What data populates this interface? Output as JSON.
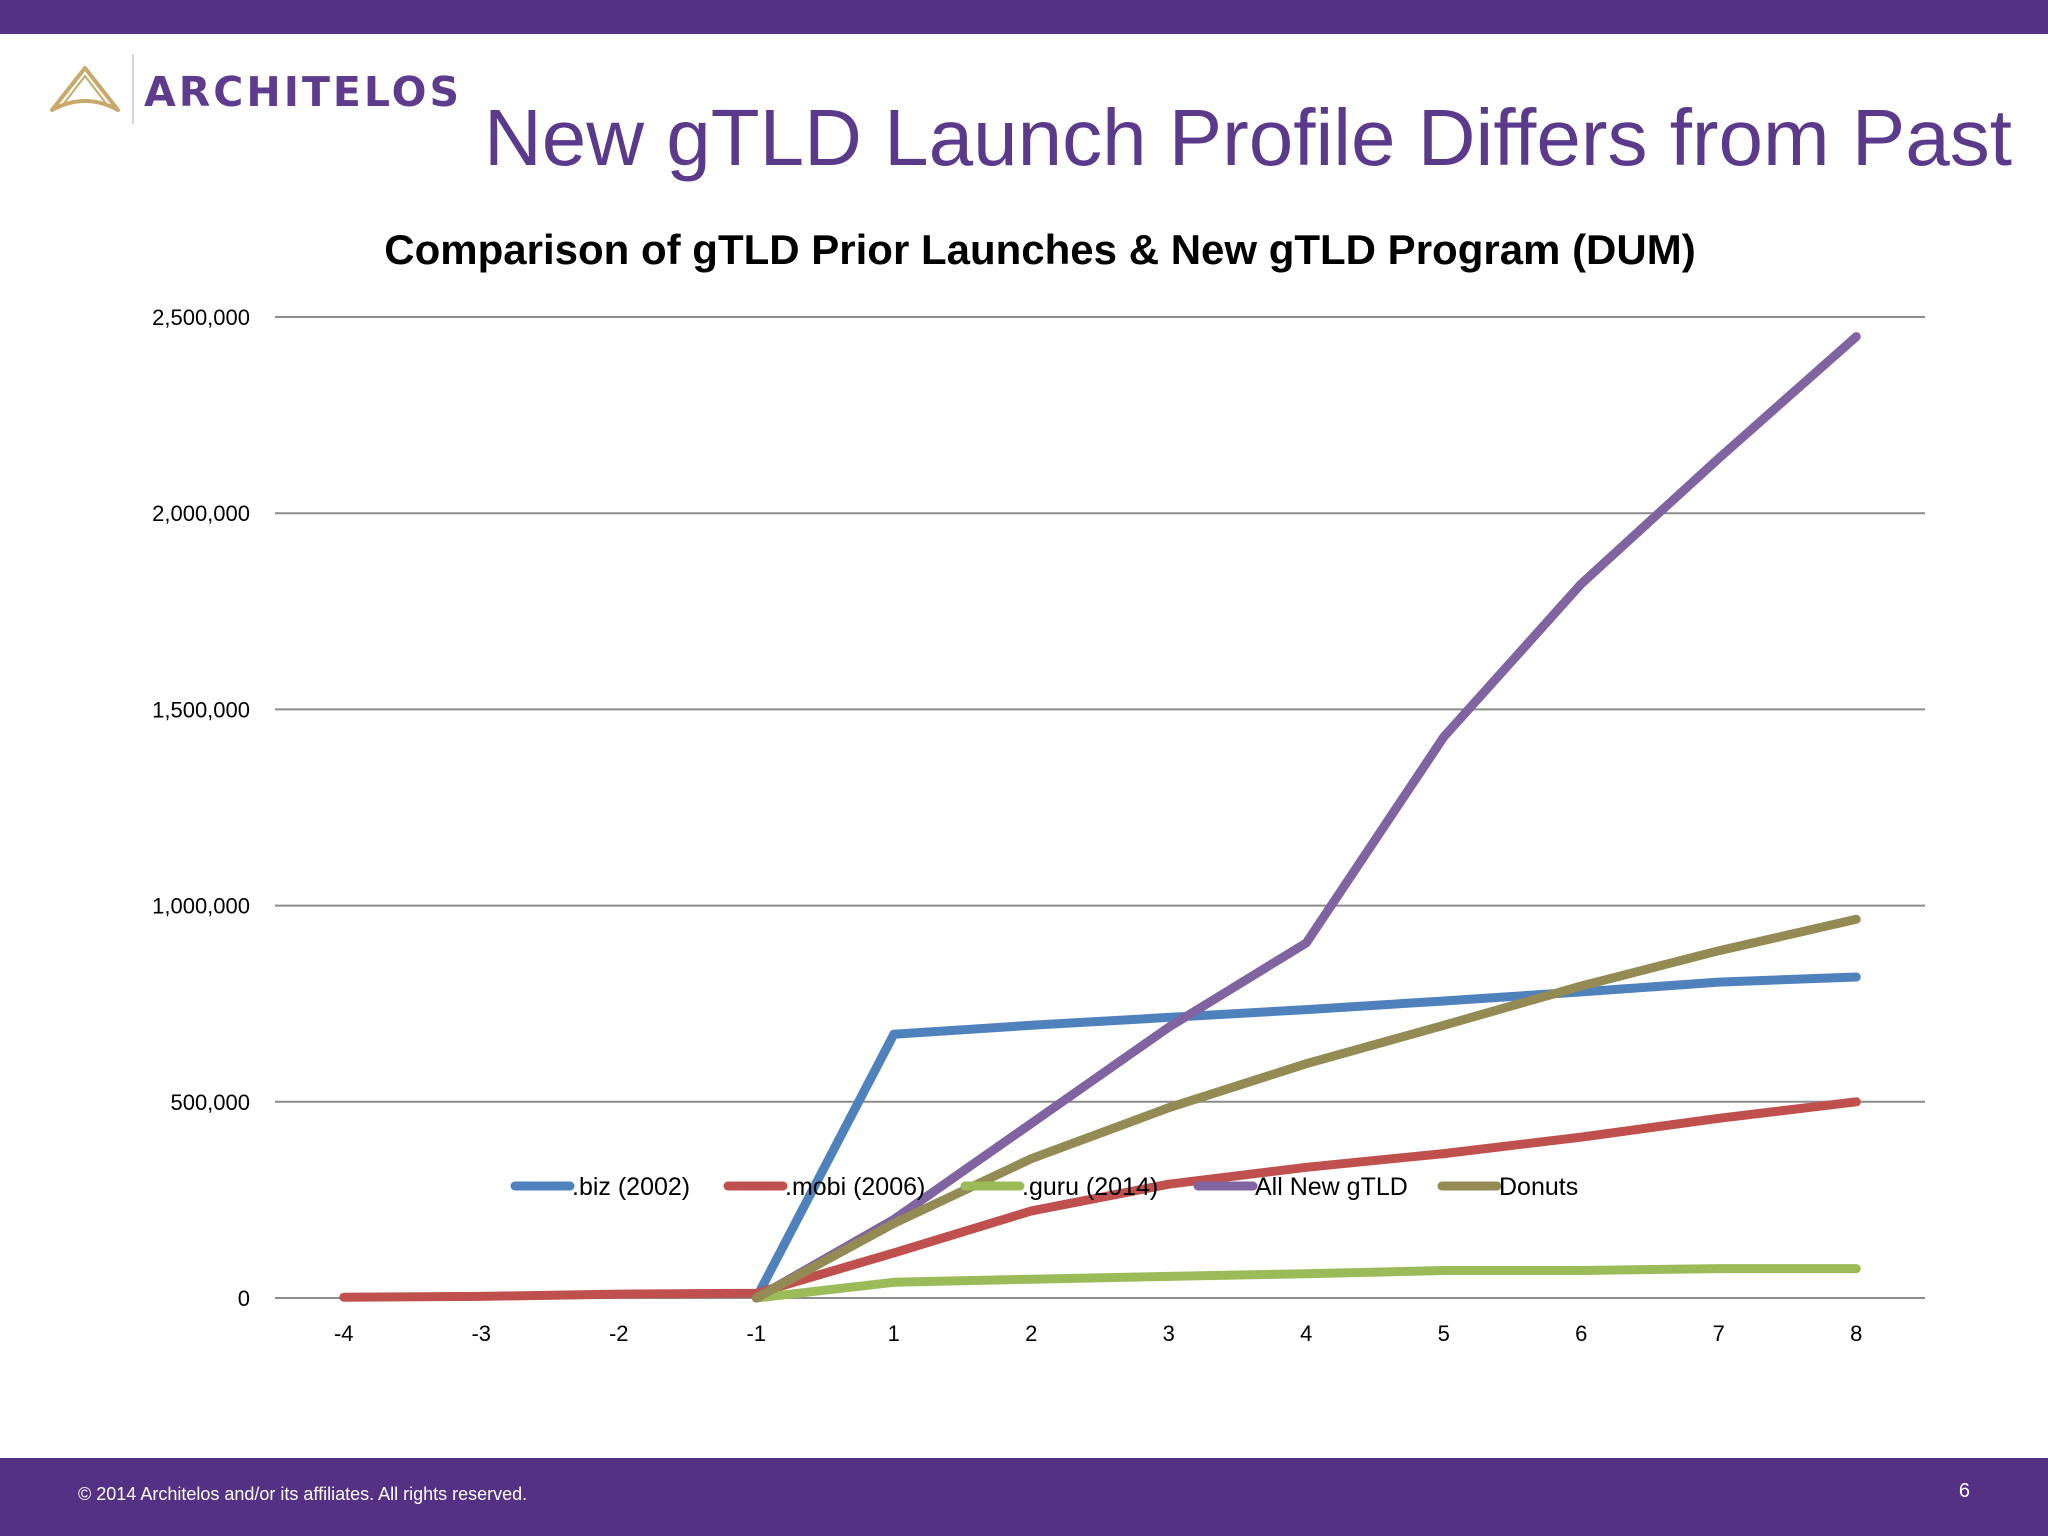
{
  "header": {
    "logo_text": "ARCHITELOS",
    "title": "New gTLD Launch Profile Differs from Past"
  },
  "footer": {
    "copyright": "© 2014 Architelos and/or its affiliates. All rights reserved.",
    "page_number": "6"
  },
  "colors": {
    "brand_purple": "#543184",
    "title_purple": "#5b3a8c",
    "logo_gold": "#c9a96a"
  },
  "chart_data": {
    "type": "line",
    "title": "Comparison of gTLD Prior Launches & New gTLD Program (DUM)",
    "xlabel": "",
    "ylabel": "",
    "categories": [
      "-4",
      "-3",
      "-2",
      "-1",
      "1",
      "2",
      "3",
      "4",
      "5",
      "6",
      "7",
      "8"
    ],
    "ylim": [
      0,
      2500000
    ],
    "yticks": [
      0,
      500000,
      1000000,
      1500000,
      2000000,
      2500000
    ],
    "ytick_labels": [
      "0",
      "500,000",
      "1,000,000",
      "1,500,000",
      "2,000,000",
      "2,500,000"
    ],
    "grid": true,
    "legend_position": "bottom",
    "series": [
      {
        "name": ".biz (2002)",
        "color": "#4f81bd",
        "values": [
          null,
          null,
          null,
          0,
          672000,
          695000,
          715000,
          735000,
          757000,
          780000,
          805000,
          818000
        ]
      },
      {
        "name": ".mobi (2006)",
        "color": "#c0504d",
        "values": [
          2000,
          4000,
          10000,
          12000,
          115000,
          222000,
          290000,
          333000,
          368000,
          410000,
          458000,
          500000
        ]
      },
      {
        "name": ".guru (2014)",
        "color": "#9bbb59",
        "values": [
          null,
          null,
          null,
          0,
          40000,
          48000,
          55000,
          62000,
          70000,
          70000,
          75000,
          75000
        ]
      },
      {
        "name": "All New gTLD",
        "color": "#8064a2",
        "values": [
          null,
          null,
          null,
          0,
          200000,
          445000,
          690000,
          905000,
          1430000,
          1820000,
          2140000,
          2450000
        ]
      },
      {
        "name": "Donuts",
        "color": "#948a54",
        "values": [
          null,
          null,
          null,
          0,
          190000,
          355000,
          485000,
          597000,
          695000,
          795000,
          885000,
          965000
        ]
      }
    ]
  }
}
